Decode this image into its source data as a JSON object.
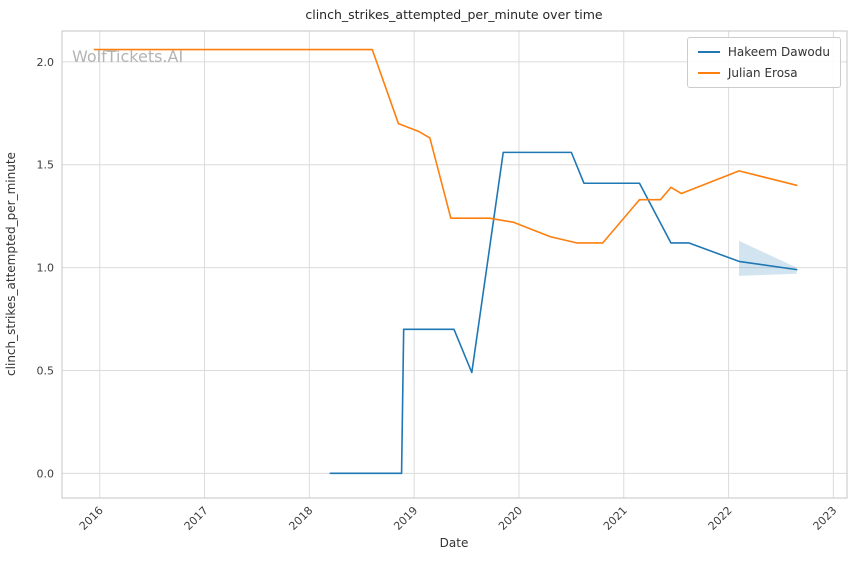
{
  "watermark": "WolfTickets.AI",
  "chart_data": {
    "type": "line",
    "title": "clinch_strikes_attempted_per_minute over time",
    "xlabel": "Date",
    "ylabel": "clinch_strikes_attempted_per_minute",
    "xlim": [
      2015.64,
      2023.13
    ],
    "ylim": [
      -0.12,
      2.15
    ],
    "x_ticks": [
      2016,
      2017,
      2018,
      2019,
      2020,
      2021,
      2022,
      2023
    ],
    "y_ticks": [
      0.0,
      0.5,
      1.0,
      1.5,
      2.0
    ],
    "grid": true,
    "legend_position": "upper right",
    "colors": {
      "grid": "#dcdcdc",
      "spine": "#c4c4c4",
      "blue": "#1f77b4",
      "orange": "#ff7f0e"
    },
    "series": [
      {
        "name": "Hakeem Dawodu",
        "color": "#1f77b4",
        "points": [
          [
            2018.2,
            0.0
          ],
          [
            2018.88,
            0.0
          ],
          [
            2018.9,
            0.7
          ],
          [
            2019.38,
            0.7
          ],
          [
            2019.55,
            0.49
          ],
          [
            2019.85,
            1.56
          ],
          [
            2020.5,
            1.56
          ],
          [
            2020.62,
            1.41
          ],
          [
            2021.15,
            1.41
          ],
          [
            2021.45,
            1.12
          ],
          [
            2021.62,
            1.12
          ],
          [
            2022.1,
            1.03
          ],
          [
            2022.65,
            0.99
          ]
        ]
      },
      {
        "name": "Julian Erosa",
        "color": "#ff7f0e",
        "points": [
          [
            2015.95,
            2.06
          ],
          [
            2018.6,
            2.06
          ],
          [
            2018.85,
            1.7
          ],
          [
            2019.05,
            1.66
          ],
          [
            2019.15,
            1.63
          ],
          [
            2019.35,
            1.24
          ],
          [
            2019.72,
            1.24
          ],
          [
            2019.95,
            1.22
          ],
          [
            2020.3,
            1.15
          ],
          [
            2020.55,
            1.12
          ],
          [
            2020.8,
            1.12
          ],
          [
            2021.15,
            1.33
          ],
          [
            2021.35,
            1.33
          ],
          [
            2021.45,
            1.39
          ],
          [
            2021.55,
            1.36
          ],
          [
            2022.1,
            1.47
          ],
          [
            2022.65,
            1.4
          ]
        ]
      }
    ],
    "band": {
      "series": "Hakeem Dawodu",
      "color": "#1f77b4",
      "opacity": 0.2,
      "upper": [
        [
          2022.1,
          1.13
        ],
        [
          2022.65,
          1.0
        ]
      ],
      "lower": [
        [
          2022.1,
          0.96
        ],
        [
          2022.65,
          0.97
        ]
      ]
    }
  }
}
